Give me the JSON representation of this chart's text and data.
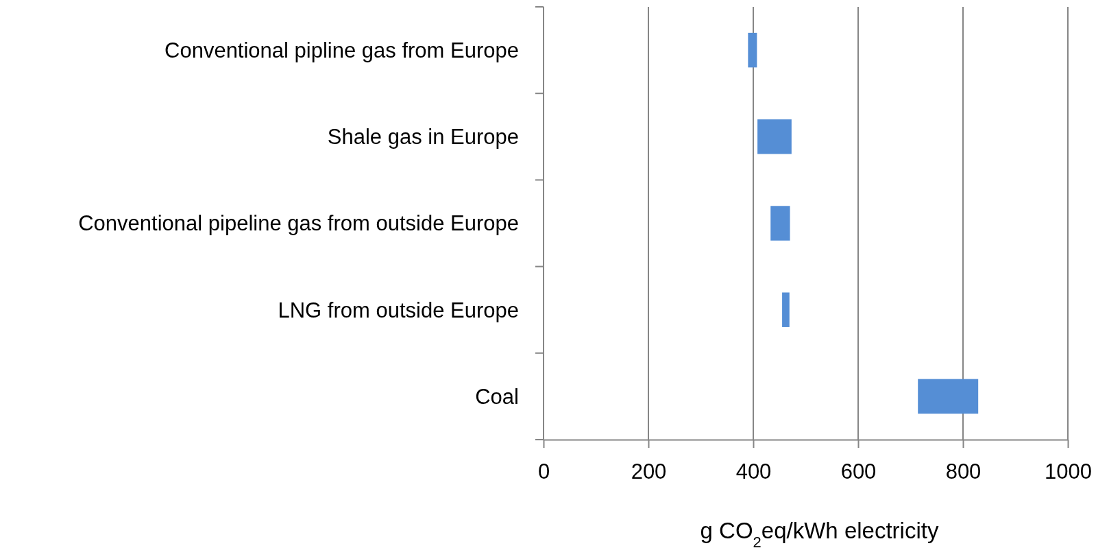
{
  "chart_data": {
    "type": "bar",
    "orientation": "horizontal",
    "categories": [
      "Conventional pipline gas from Europe",
      "Shale gas in Europe",
      "Conventional pipeline gas from outside Europe",
      "LNG from outside Europe",
      "Coal"
    ],
    "base": [
      390,
      408,
      433,
      455,
      714
    ],
    "values": [
      17,
      65,
      37,
      14,
      115
    ],
    "color": "#558ed5",
    "xlabel": "g CO$_{2}$eq/kWh electricity",
    "xlim": [
      0,
      1000
    ],
    "xticks": [
      0,
      200,
      400,
      600,
      800,
      1000
    ],
    "grid": "x"
  }
}
